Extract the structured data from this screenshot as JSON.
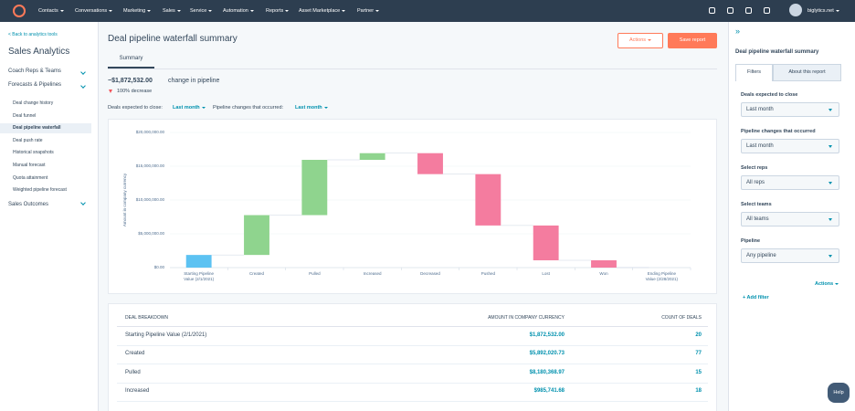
{
  "nav": {
    "items": [
      "Contacts",
      "Conversations",
      "Marketing",
      "Sales",
      "Service",
      "Automation",
      "Reports",
      "Asset Marketplace",
      "Partner"
    ],
    "account": "biglytics.net"
  },
  "sidebar": {
    "back": "< Back to analytics tools",
    "title": "Sales Analytics",
    "sections": [
      "Coach Reps & Teams",
      "Forecasts & Pipelines"
    ],
    "items": [
      "Deal change history",
      "Deal funnel",
      "Deal pipeline waterfall",
      "Deal push rate",
      "Historical snapshots",
      "Manual forecast",
      "Quota attainment",
      "Weighted pipeline forecast"
    ],
    "last_section": "Sales Outcomes"
  },
  "main": {
    "title": "Deal pipeline waterfall summary",
    "actions": "Actions",
    "save": "Save report",
    "tab": "Summary",
    "change_amount": "−$1,872,532.00",
    "change_text": "change in pipeline",
    "decrease": "100% decrease",
    "filter1_label": "Deals expected to close:",
    "filter1_value": "Last month",
    "filter2_label": "Pipeline changes that occurred:",
    "filter2_value": "Last month"
  },
  "chart_data": {
    "type": "waterfall",
    "y_label": "Amount in company currency",
    "categories": [
      "Starting Pipeline Value (2/1/2021)",
      "Created",
      "Pulled",
      "Increased",
      "Decreased",
      "Pushed",
      "Lost",
      "Won",
      "Ending Pipeline Value (2/28/2021)"
    ],
    "values": [
      1872532,
      5892020.73,
      8180368.97,
      985741.68,
      -3100000,
      -7600000,
      -5150000,
      -1080000,
      0
    ],
    "colors": [
      "#5cc2f2",
      "#8fd48e",
      "#8fd48e",
      "#8fd48e",
      "#f47c9f",
      "#f47c9f",
      "#f47c9f",
      "#f47c9f",
      "#5cc2f2"
    ],
    "ylim": [
      0,
      20000000
    ],
    "yticks": [
      {
        "value": 0,
        "label": "$0.00"
      },
      {
        "value": 5000000,
        "label": "$5,000,000.00"
      },
      {
        "value": 10000000,
        "label": "$10,000,000.00"
      },
      {
        "value": 15000000,
        "label": "$15,000,000.00"
      },
      {
        "value": 20000000,
        "label": "$20,000,000.00"
      }
    ],
    "grid": true
  },
  "table": {
    "headers": [
      "DEAL BREAKDOWN",
      "AMOUNT IN COMPANY CURRENCY",
      "COUNT OF DEALS"
    ],
    "rows": [
      [
        "Starting Pipeline Value (2/1/2021)",
        "$1,872,532.00",
        "20"
      ],
      [
        "Created",
        "$5,892,020.73",
        "77"
      ],
      [
        "Pulled",
        "$8,180,368.97",
        "15"
      ],
      [
        "Increased",
        "$985,741.68",
        "18"
      ]
    ]
  },
  "panel": {
    "title": "Deal pipeline waterfall summary",
    "tabs": [
      "Filters",
      "About this report"
    ],
    "fields": [
      {
        "label": "Deals expected to close",
        "value": "Last month"
      },
      {
        "label": "Pipeline changes that occurred",
        "value": "Last month"
      },
      {
        "label": "Select reps",
        "value": "All reps"
      },
      {
        "label": "Select teams",
        "value": "All teams"
      },
      {
        "label": "Pipeline",
        "value": "Any pipeline"
      }
    ],
    "actions": "Actions",
    "add_filter": "+ Add filter"
  },
  "help": "Help"
}
